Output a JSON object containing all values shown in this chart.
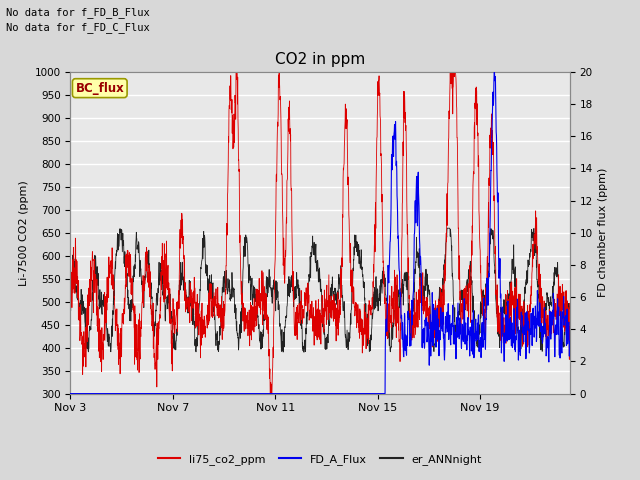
{
  "title": "CO2 in ppm",
  "ylabel_left": "Li-7500 CO2 (ppm)",
  "ylabel_right": "FD chamber flux (ppm)",
  "text_no_data_1": "No data for f_FD_B_Flux",
  "text_no_data_2": "No data for f_FD_C_Flux",
  "bc_flux_label": "BC_flux",
  "ylim_left": [
    300,
    1000
  ],
  "ylim_right": [
    0,
    20
  ],
  "yticks_left": [
    300,
    350,
    400,
    450,
    500,
    550,
    600,
    650,
    700,
    750,
    800,
    850,
    900,
    950,
    1000
  ],
  "yticks_right": [
    0,
    2,
    4,
    6,
    8,
    10,
    12,
    14,
    16,
    18,
    20
  ],
  "xtick_labels": [
    "Nov 3",
    "Nov 7",
    "Nov 11",
    "Nov 15",
    "Nov 19"
  ],
  "xtick_positions": [
    0,
    4,
    8,
    12,
    16
  ],
  "fig_bg_color": "#d8d8d8",
  "plot_bg_color": "#e8e8e8",
  "grid_color": "#ffffff",
  "line_red": "#dd0000",
  "line_blue": "#0000ee",
  "line_black": "#222222",
  "bc_flux_box_color": "#ffffaa",
  "bc_flux_text_color": "#990000",
  "bc_flux_border_color": "#999900",
  "total_days": 19.5
}
